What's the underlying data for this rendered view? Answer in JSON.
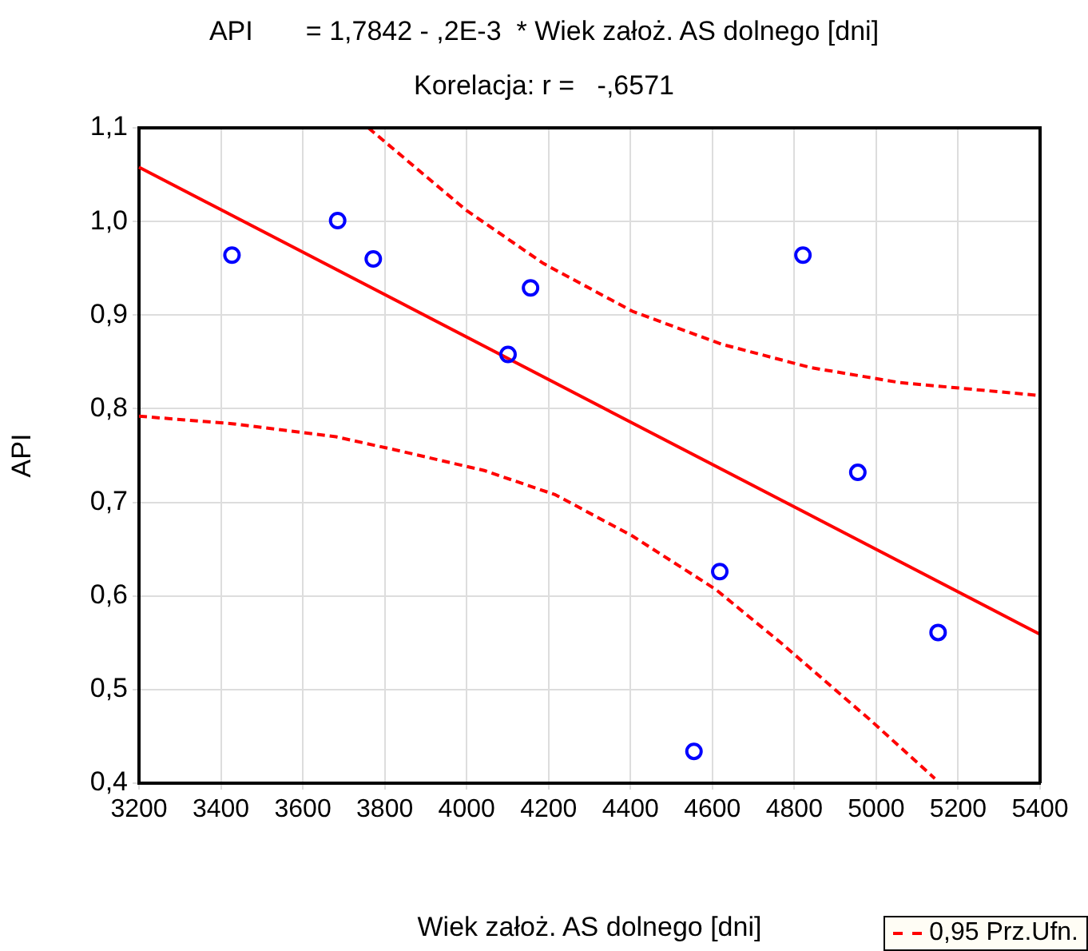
{
  "chart_data": {
    "type": "scatter",
    "title": "API       = 1,7842 - ,2E-3  * Wiek założ. AS dolnego [dni]",
    "subtitle": "Korelacja: r =   -,6571",
    "xlabel": "Wiek założ. AS dolnego [dni]",
    "ylabel": "API",
    "xlim": [
      3200,
      5400
    ],
    "xticks": [
      3200,
      3400,
      3600,
      3800,
      4000,
      4200,
      4400,
      4600,
      4800,
      5000,
      5200,
      5400
    ],
    "ylim": [
      0.4,
      1.1
    ],
    "yticks": [
      {
        "value": 0.4,
        "label": "0,4"
      },
      {
        "value": 0.5,
        "label": "0,5"
      },
      {
        "value": 0.6,
        "label": "0,6"
      },
      {
        "value": 0.7,
        "label": "0,7"
      },
      {
        "value": 0.8,
        "label": "0,8"
      },
      {
        "value": 0.9,
        "label": "0,9"
      },
      {
        "value": 1.0,
        "label": "1,0"
      },
      {
        "value": 1.1,
        "label": "1,1"
      }
    ],
    "grid": true,
    "legend": "bottom right",
    "series": [
      {
        "type": "scatter",
        "color": "#0000ff",
        "marker": "circle",
        "x": [
          3427,
          3685,
          3772,
          4156,
          4101,
          4821,
          4955,
          4618,
          4555,
          5151
        ],
        "values": [
          0.964,
          1.001,
          0.96,
          0.929,
          0.858,
          0.964,
          0.732,
          0.626,
          0.434,
          0.561
        ]
      },
      {
        "type": "line",
        "color": "#ff0000",
        "marker": "none",
        "line_style": "solid",
        "x": [
          3200,
          5400
        ],
        "values": [
          1.058,
          0.559
        ]
      },
      {
        "type": "line",
        "name": "0,95 Prz.Ufn.",
        "color": "#ff0000",
        "marker": "none",
        "line_style": "dashed",
        "x": [
          3760,
          3999,
          4188,
          4405,
          4622,
          4839,
          5056,
          5400
        ],
        "values": [
          1.1,
          1.012,
          0.955,
          0.904,
          0.869,
          0.844,
          0.828,
          0.814
        ]
      },
      {
        "type": "line",
        "color": "#ff0000",
        "marker": "none",
        "line_style": "dashed",
        "x": [
          3200,
          3427,
          3681,
          3826,
          4043,
          4217,
          4405,
          4608,
          4767,
          4984,
          5143
        ],
        "values": [
          0.792,
          0.784,
          0.77,
          0.756,
          0.734,
          0.708,
          0.664,
          0.607,
          0.55,
          0.468,
          0.405
        ]
      }
    ]
  }
}
